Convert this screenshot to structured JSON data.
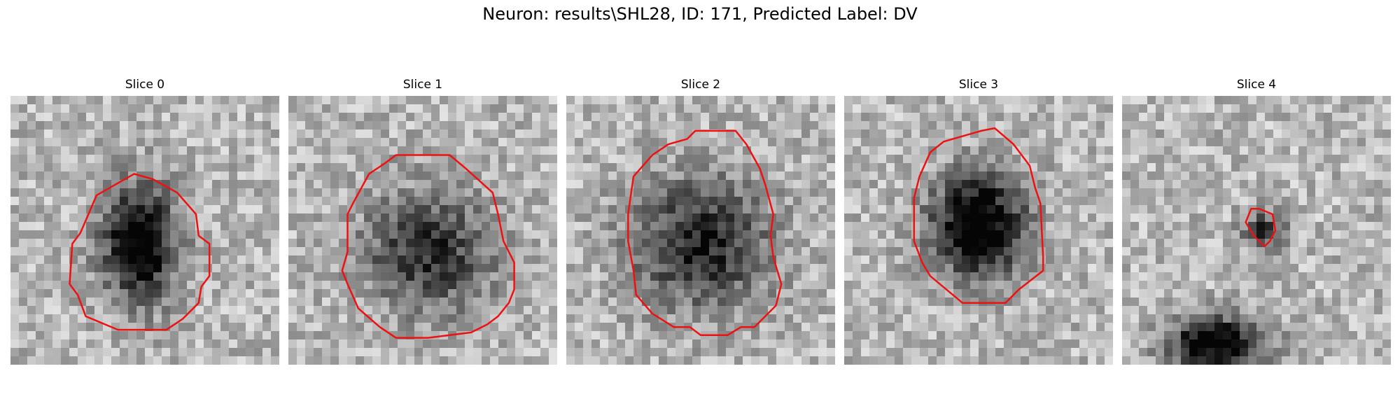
{
  "figure": {
    "title": "Neuron: results\\SHL28, ID: 171, Predicted Label: DV"
  },
  "panels": [
    {
      "title": "Slice 0",
      "outline_color": "#ee1111",
      "outline": [
        [
          0.39,
          0.33
        ],
        [
          0.46,
          0.29
        ],
        [
          0.53,
          0.31
        ],
        [
          0.62,
          0.36
        ],
        [
          0.69,
          0.44
        ],
        [
          0.7,
          0.52
        ],
        [
          0.74,
          0.55
        ],
        [
          0.74,
          0.67
        ],
        [
          0.71,
          0.71
        ],
        [
          0.7,
          0.77
        ],
        [
          0.64,
          0.83
        ],
        [
          0.58,
          0.87
        ],
        [
          0.4,
          0.87
        ],
        [
          0.28,
          0.82
        ],
        [
          0.25,
          0.74
        ],
        [
          0.22,
          0.7
        ],
        [
          0.23,
          0.55
        ],
        [
          0.26,
          0.51
        ],
        [
          0.29,
          0.44
        ],
        [
          0.32,
          0.37
        ]
      ],
      "dark_blobs": [
        [
          0.48,
          0.55,
          0.17,
          0.27,
          0.85
        ]
      ]
    },
    {
      "title": "Slice 1",
      "outline_color": "#ee1111",
      "outline": [
        [
          0.3,
          0.29
        ],
        [
          0.36,
          0.25
        ],
        [
          0.4,
          0.22
        ],
        [
          0.6,
          0.22
        ],
        [
          0.66,
          0.27
        ],
        [
          0.76,
          0.36
        ],
        [
          0.78,
          0.44
        ],
        [
          0.8,
          0.54
        ],
        [
          0.84,
          0.62
        ],
        [
          0.84,
          0.72
        ],
        [
          0.82,
          0.77
        ],
        [
          0.78,
          0.82
        ],
        [
          0.74,
          0.85
        ],
        [
          0.68,
          0.88
        ],
        [
          0.52,
          0.9
        ],
        [
          0.4,
          0.9
        ],
        [
          0.34,
          0.86
        ],
        [
          0.26,
          0.79
        ],
        [
          0.22,
          0.7
        ],
        [
          0.2,
          0.65
        ],
        [
          0.22,
          0.58
        ],
        [
          0.22,
          0.44
        ],
        [
          0.24,
          0.4
        ]
      ],
      "dark_blobs": [
        [
          0.52,
          0.58,
          0.3,
          0.28,
          0.55
        ]
      ]
    },
    {
      "title": "Slice 2",
      "outline_color": "#ee1111",
      "outline": [
        [
          0.32,
          0.22
        ],
        [
          0.38,
          0.18
        ],
        [
          0.45,
          0.16
        ],
        [
          0.48,
          0.13
        ],
        [
          0.63,
          0.13
        ],
        [
          0.67,
          0.18
        ],
        [
          0.72,
          0.27
        ],
        [
          0.74,
          0.33
        ],
        [
          0.77,
          0.44
        ],
        [
          0.76,
          0.52
        ],
        [
          0.77,
          0.6
        ],
        [
          0.8,
          0.7
        ],
        [
          0.78,
          0.78
        ],
        [
          0.73,
          0.83
        ],
        [
          0.7,
          0.86
        ],
        [
          0.65,
          0.86
        ],
        [
          0.6,
          0.89
        ],
        [
          0.5,
          0.89
        ],
        [
          0.46,
          0.86
        ],
        [
          0.4,
          0.86
        ],
        [
          0.32,
          0.81
        ],
        [
          0.26,
          0.74
        ],
        [
          0.25,
          0.65
        ],
        [
          0.23,
          0.54
        ],
        [
          0.23,
          0.44
        ],
        [
          0.25,
          0.3
        ]
      ],
      "dark_blobs": [
        [
          0.5,
          0.55,
          0.32,
          0.3,
          0.6
        ]
      ]
    },
    {
      "title": "Slice 3",
      "outline_color": "#ee1111",
      "outline": [
        [
          0.32,
          0.21
        ],
        [
          0.37,
          0.17
        ],
        [
          0.44,
          0.15
        ],
        [
          0.51,
          0.13
        ],
        [
          0.56,
          0.12
        ],
        [
          0.63,
          0.18
        ],
        [
          0.69,
          0.26
        ],
        [
          0.71,
          0.34
        ],
        [
          0.73,
          0.4
        ],
        [
          0.74,
          0.6
        ],
        [
          0.74,
          0.65
        ],
        [
          0.65,
          0.72
        ],
        [
          0.6,
          0.77
        ],
        [
          0.44,
          0.77
        ],
        [
          0.32,
          0.67
        ],
        [
          0.29,
          0.62
        ],
        [
          0.26,
          0.54
        ],
        [
          0.26,
          0.38
        ],
        [
          0.28,
          0.3
        ]
      ],
      "dark_blobs": [
        [
          0.5,
          0.48,
          0.22,
          0.24,
          0.85
        ]
      ]
    },
    {
      "title": "Slice 4",
      "outline_color": "#ee1111",
      "outline": [
        [
          0.48,
          0.42
        ],
        [
          0.51,
          0.42
        ],
        [
          0.56,
          0.44
        ],
        [
          0.57,
          0.5
        ],
        [
          0.55,
          0.54
        ],
        [
          0.53,
          0.56
        ],
        [
          0.49,
          0.52
        ],
        [
          0.46,
          0.47
        ]
      ],
      "dark_blobs": [
        [
          0.53,
          0.5,
          0.1,
          0.08,
          0.55
        ],
        [
          0.35,
          0.92,
          0.22,
          0.12,
          0.85
        ]
      ]
    }
  ]
}
